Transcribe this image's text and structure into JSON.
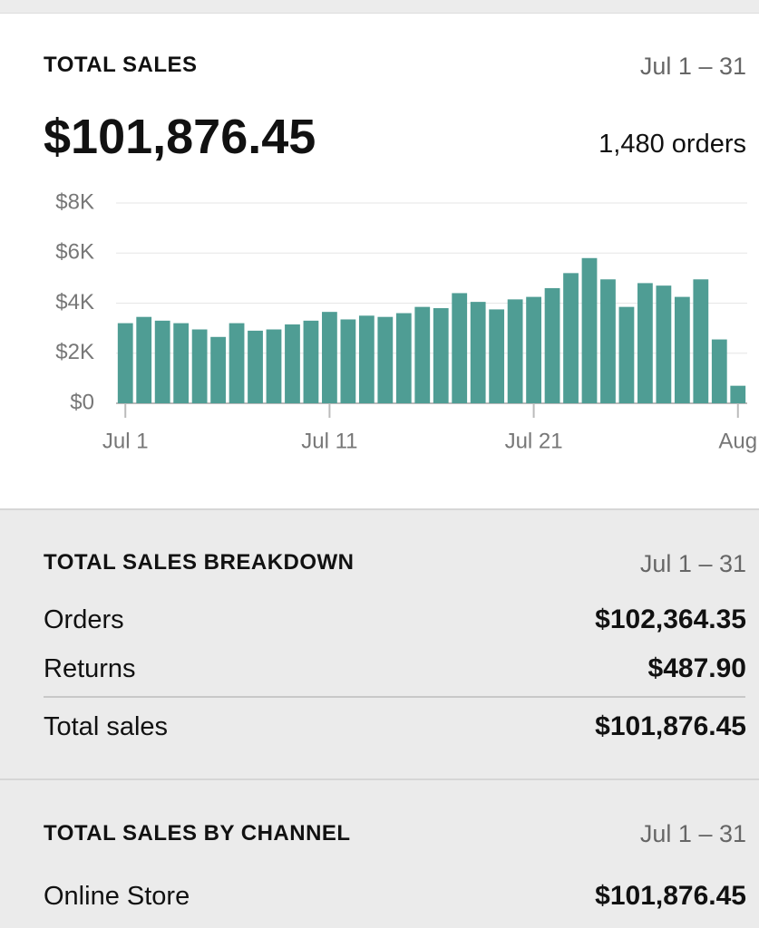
{
  "summary": {
    "title": "TOTAL SALES",
    "period": "Jul 1 – 31",
    "total": "$101,876.45",
    "orders": "1,480 orders"
  },
  "chart_data": {
    "type": "bar",
    "color": "#4f9d94",
    "grid": true,
    "categories": [
      "Jul 1",
      null,
      null,
      null,
      null,
      null,
      null,
      null,
      null,
      null,
      null,
      "Jul 11",
      null,
      null,
      null,
      null,
      null,
      null,
      null,
      null,
      null,
      null,
      "Jul 21",
      null,
      null,
      null,
      null,
      null,
      null,
      null,
      null,
      null,
      null,
      "Aug"
    ],
    "values": [
      3200,
      3450,
      3300,
      3200,
      2950,
      2650,
      3200,
      2900,
      2950,
      3150,
      3300,
      3650,
      3350,
      3500,
      3450,
      3600,
      3850,
      3800,
      4400,
      4050,
      3750,
      4150,
      4250,
      4600,
      5200,
      5800,
      4950,
      3850,
      4800,
      4700,
      4250,
      4950,
      2550,
      700
    ],
    "ylim": [
      0,
      8000
    ],
    "yticks": [
      {
        "value": 0,
        "label": "$0"
      },
      {
        "value": 2000,
        "label": "$2K"
      },
      {
        "value": 4000,
        "label": "$4K"
      },
      {
        "value": 6000,
        "label": "$6K"
      },
      {
        "value": 8000,
        "label": "$8K"
      }
    ]
  },
  "breakdown": {
    "title": "TOTAL SALES BREAKDOWN",
    "period": "Jul 1 – 31",
    "rows": [
      [
        "Orders",
        "$102,364.35"
      ],
      [
        "Returns",
        "$487.90"
      ]
    ],
    "total": [
      "Total sales",
      "$101,876.45"
    ]
  },
  "channel": {
    "title": "TOTAL SALES BY CHANNEL",
    "period": "Jul 1 – 31",
    "rows": [
      [
        "Online Store",
        "$101,876.45"
      ]
    ]
  }
}
